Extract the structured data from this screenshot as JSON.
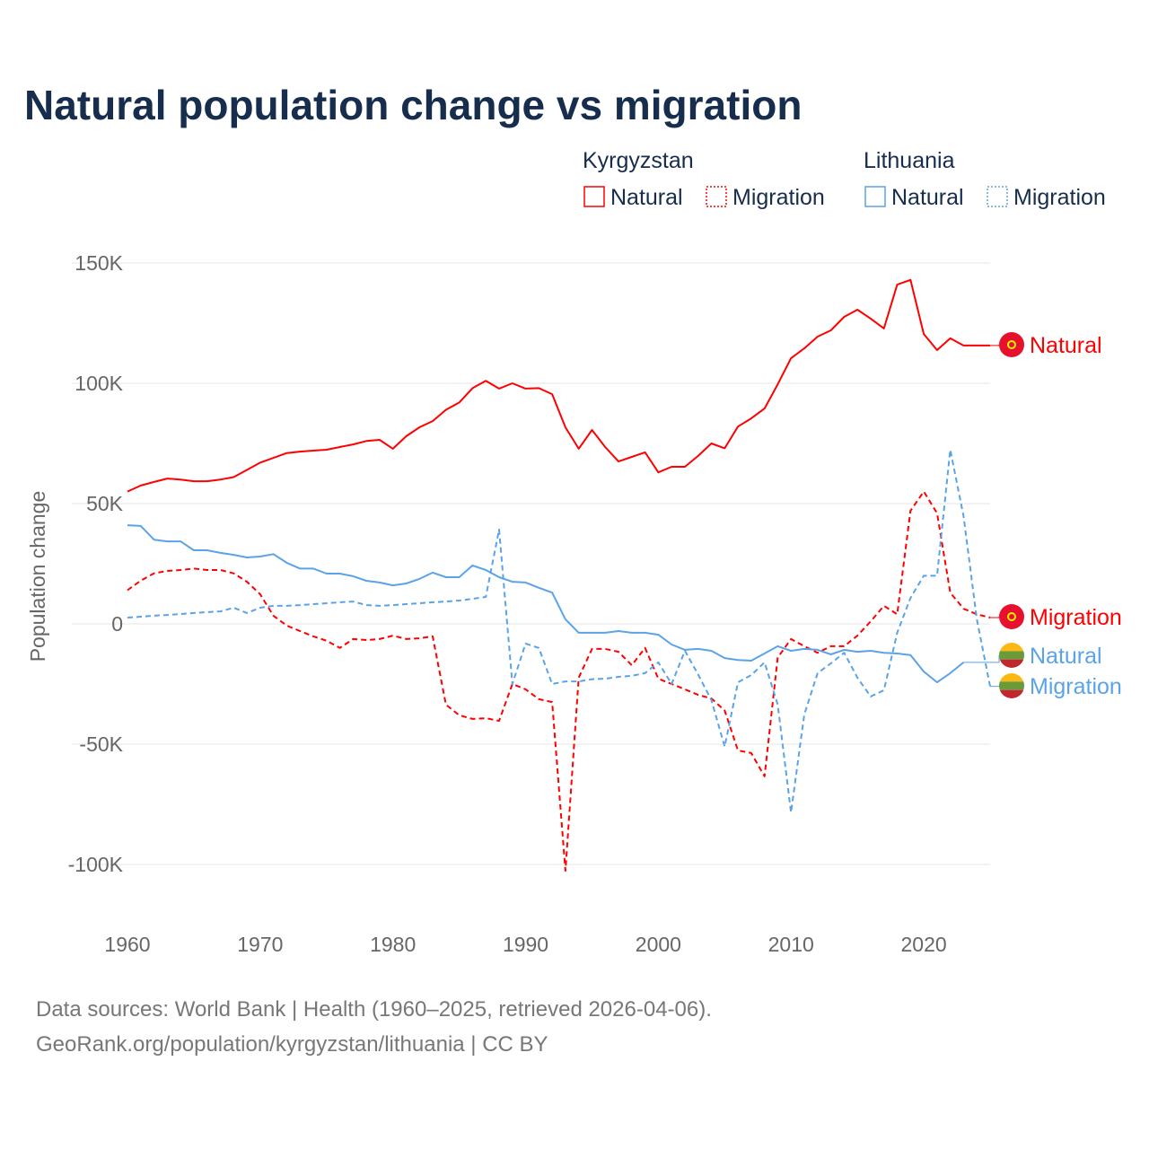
{
  "chart_data": {
    "type": "line",
    "title": "Natural population change vs migration",
    "xlabel": "",
    "ylabel": "Population change",
    "xlim": [
      1960,
      2025
    ],
    "ylim": [
      -110000,
      155000
    ],
    "yticks": [
      150000,
      100000,
      50000,
      0,
      -50000,
      -100000
    ],
    "ytick_labels": [
      "150K",
      "100K",
      "50K",
      "0",
      "-50K",
      "-100K"
    ],
    "xticks": [
      1960,
      1970,
      1980,
      1990,
      2000,
      2010,
      2020
    ],
    "xtick_labels": [
      "1960",
      "1970",
      "1980",
      "1990",
      "2000",
      "2010",
      "2020"
    ],
    "grid": true,
    "legend_placement": "top-right",
    "legend": {
      "groups": [
        {
          "country": "Kyrgyzstan",
          "items": [
            "Natural",
            "Migration"
          ]
        },
        {
          "country": "Lithuania",
          "items": [
            "Natural",
            "Migration"
          ]
        }
      ]
    },
    "series": [
      {
        "name": "Natural",
        "country": "Kyrgyzstan",
        "color": "#ff0000",
        "style": "solid",
        "end_label": "Natural",
        "start_year": 1960,
        "values": [
          55000,
          57500,
          59000,
          60400,
          60000,
          59300,
          59300,
          60000,
          61000,
          64000,
          67000,
          69000,
          71000,
          71600,
          72000,
          72400,
          73500,
          74600,
          76000,
          76500,
          72800,
          78000,
          81700,
          84300,
          89000,
          92000,
          98000,
          101000,
          97800,
          100000,
          97800,
          98000,
          95500,
          81700,
          72800,
          80600,
          73500,
          67500,
          69400,
          71300,
          63000,
          65300,
          65300,
          69800,
          75000,
          73000,
          82000,
          85400,
          89500,
          99600,
          110400,
          114500,
          119400,
          122000,
          127600,
          130600,
          126900,
          122800,
          141000,
          143000,
          120500,
          113800,
          118700,
          115700,
          115700,
          115700
        ]
      },
      {
        "name": "Migration",
        "country": "Kyrgyzstan",
        "color": "#ff0000",
        "style": "dashed",
        "end_label": "Migration",
        "start_year": 1960,
        "values": [
          14000,
          18000,
          21000,
          22000,
          22400,
          23000,
          22400,
          22400,
          21000,
          17500,
          12300,
          3400,
          -700,
          -3000,
          -5200,
          -7000,
          -10000,
          -6300,
          -6700,
          -6300,
          -4900,
          -6300,
          -6000,
          -5200,
          -33600,
          -38000,
          -39500,
          -39200,
          -40300,
          -25000,
          -27200,
          -31300,
          -32500,
          -102600,
          -22400,
          -10400,
          -10400,
          -11600,
          -17200,
          -10000,
          -22800,
          -25000,
          -27200,
          -29500,
          -31000,
          -36000,
          -52600,
          -53700,
          -63400,
          -14000,
          -6300,
          -9300,
          -12000,
          -9300,
          -9300,
          -4900,
          1000,
          7500,
          4000,
          47000,
          55000,
          46000,
          13000,
          6300,
          4000,
          2600
        ]
      },
      {
        "name": "Natural",
        "country": "Lithuania",
        "color": "#5ba3e8",
        "style": "solid",
        "end_label": "Natural",
        "start_year": 1960,
        "values": [
          41000,
          40700,
          35000,
          34300,
          34300,
          30600,
          30600,
          29500,
          28700,
          27600,
          28000,
          29000,
          25400,
          23000,
          23000,
          20900,
          20900,
          19800,
          17900,
          17200,
          16000,
          16800,
          18700,
          21300,
          19400,
          19400,
          24300,
          22400,
          19400,
          17500,
          17200,
          15000,
          13000,
          1900,
          -3700,
          -3700,
          -3700,
          -3000,
          -3700,
          -3700,
          -4500,
          -8600,
          -10800,
          -10400,
          -11200,
          -14200,
          -15000,
          -15300,
          -12300,
          -9300,
          -11200,
          -10400,
          -10800,
          -12700,
          -10800,
          -11600,
          -11200,
          -12000,
          -12300,
          -13000,
          -19800,
          -24300,
          -20500,
          -16000
        ]
      },
      {
        "name": "Migration",
        "country": "Lithuania",
        "color": "#5ba3e8",
        "style": "dashed",
        "end_label": "Migration",
        "start_year": 1960,
        "values": [
          2600,
          3000,
          3400,
          3700,
          4100,
          4500,
          4900,
          5200,
          6700,
          4500,
          6700,
          7500,
          7500,
          7800,
          8200,
          8600,
          9000,
          9300,
          7800,
          7500,
          7800,
          8200,
          8600,
          9000,
          9300,
          9700,
          10400,
          11200,
          39200,
          -25000,
          -8200,
          -10000,
          -25000,
          -23900,
          -23900,
          -23000,
          -22800,
          -22000,
          -21600,
          -20500,
          -16000,
          -25000,
          -11200,
          -21000,
          -31700,
          -51000,
          -24300,
          -21300,
          -16000,
          -33600,
          -78400,
          -37700,
          -20500,
          -16400,
          -12000,
          -22400,
          -30200,
          -27600,
          -3700,
          10800,
          20000,
          20000,
          72400,
          44800,
          1900,
          -26000
        ]
      }
    ]
  },
  "source": {
    "line1": "Data sources: World Bank | Health (1960–2025, retrieved 2026-04-06).",
    "line2": "GeoRank.org/population/kyrgyzstan/lithuania | CC BY"
  }
}
